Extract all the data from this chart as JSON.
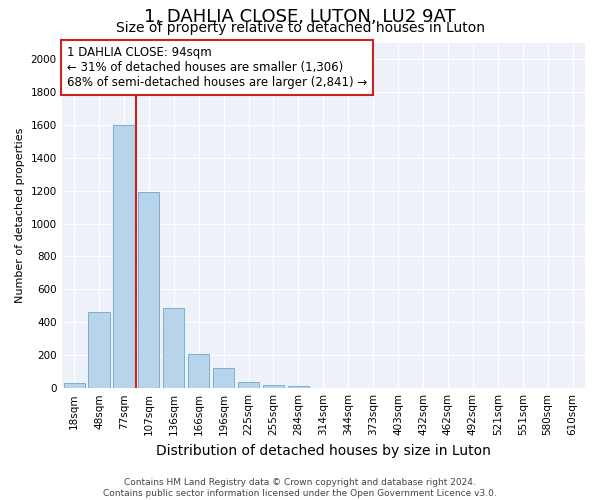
{
  "title": "1, DAHLIA CLOSE, LUTON, LU2 9AT",
  "subtitle": "Size of property relative to detached houses in Luton",
  "xlabel": "Distribution of detached houses by size in Luton",
  "ylabel": "Number of detached properties",
  "categories": [
    "18sqm",
    "48sqm",
    "77sqm",
    "107sqm",
    "136sqm",
    "166sqm",
    "196sqm",
    "225sqm",
    "255sqm",
    "284sqm",
    "314sqm",
    "344sqm",
    "373sqm",
    "403sqm",
    "432sqm",
    "462sqm",
    "492sqm",
    "521sqm",
    "551sqm",
    "580sqm",
    "610sqm"
  ],
  "values": [
    30,
    460,
    1600,
    1190,
    490,
    210,
    125,
    40,
    20,
    15,
    0,
    0,
    0,
    0,
    0,
    0,
    0,
    0,
    0,
    0,
    0
  ],
  "bar_color": "#b8d4ea",
  "bar_edge_color": "#7ab0d4",
  "vline_color": "#cc2222",
  "annotation_text": "1 DAHLIA CLOSE: 94sqm\n← 31% of detached houses are smaller (1,306)\n68% of semi-detached houses are larger (2,841) →",
  "annotation_box_facecolor": "#ffffff",
  "annotation_box_edgecolor": "#cc2222",
  "ylim": [
    0,
    2100
  ],
  "yticks": [
    0,
    200,
    400,
    600,
    800,
    1000,
    1200,
    1400,
    1600,
    1800,
    2000
  ],
  "background_color": "#eef2f8",
  "footer_text": "Contains HM Land Registry data © Crown copyright and database right 2024.\nContains public sector information licensed under the Open Government Licence v3.0.",
  "title_fontsize": 13,
  "subtitle_fontsize": 10,
  "xlabel_fontsize": 10,
  "ylabel_fontsize": 8,
  "tick_fontsize": 7.5,
  "annotation_fontsize": 8.5,
  "footer_fontsize": 6.5
}
